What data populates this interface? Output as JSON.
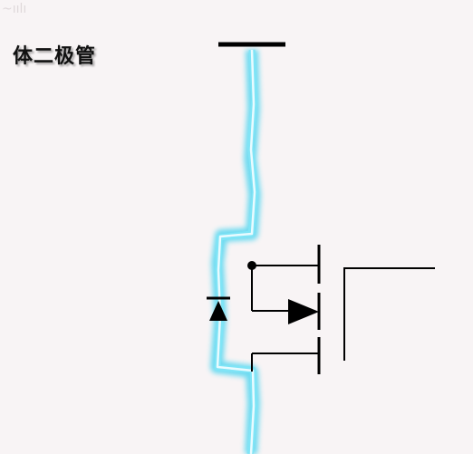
{
  "title": "体二极管",
  "watermark": "~ıılı",
  "colors": {
    "background": "#f8f4f5",
    "wire": "#000000",
    "glow": "#5fd8f0",
    "glow_core": "#e9fbff"
  },
  "components": {
    "body_diode": "diode-symbol",
    "mosfet": "mosfet-symbol"
  }
}
